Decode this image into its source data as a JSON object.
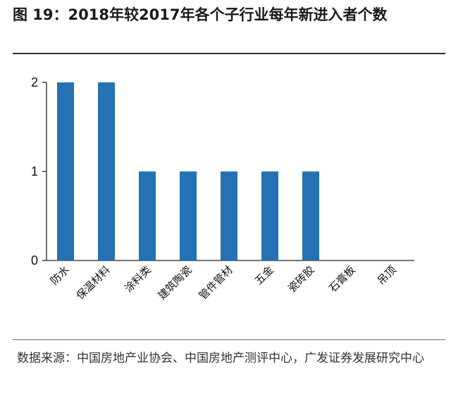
{
  "figure": {
    "label": "图 19：",
    "title": "2018年较2017年各个子行业每年新进入者个数"
  },
  "source": {
    "text": "数据来源：中国房地产业协会、中国房地产测评中心，广发证券发展研究中心"
  },
  "colors": {
    "bar": "#2471b4",
    "axis": "#222222"
  },
  "chart_data": {
    "type": "bar",
    "title": "",
    "xlabel": "",
    "ylabel": "",
    "categories": [
      "防水",
      "保温材料",
      "涂料类",
      "建筑陶瓷",
      "管件管材",
      "五金",
      "瓷砖胶",
      "石膏板",
      "吊顶"
    ],
    "values": [
      2,
      2,
      1,
      1,
      1,
      1,
      1,
      0,
      0
    ],
    "ylim": [
      0,
      2
    ],
    "yticks": [
      0,
      1,
      2
    ],
    "grid": false,
    "legend": "none"
  }
}
